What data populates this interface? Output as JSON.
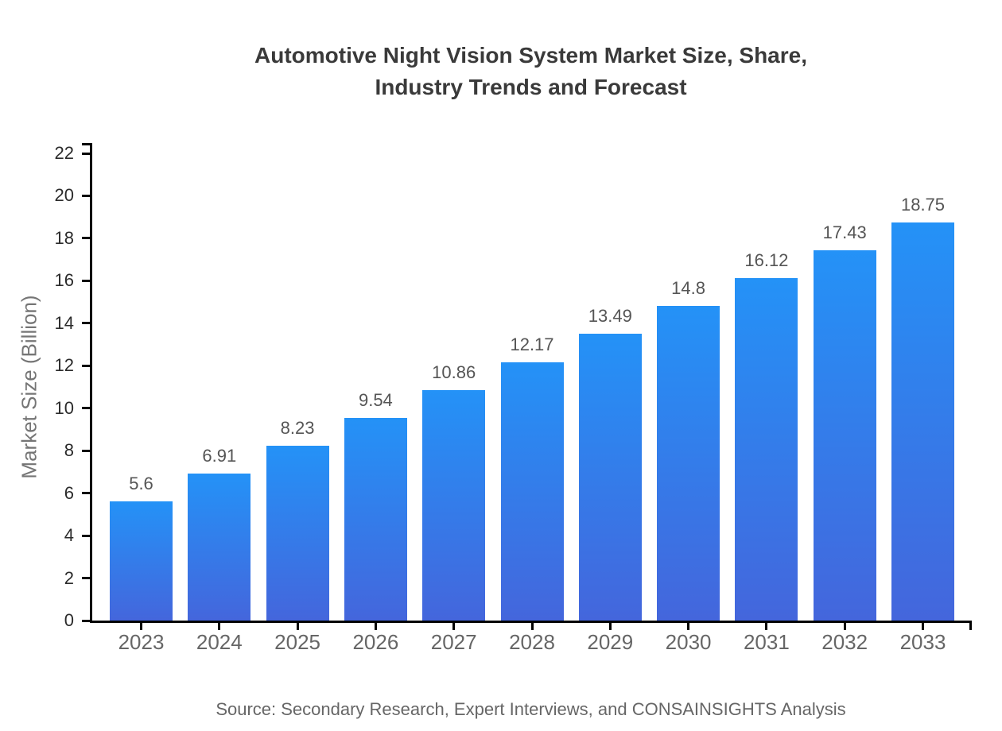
{
  "title": {
    "line1": "Automotive Night Vision System Market Size, Share,",
    "line2": "Industry Trends and Forecast"
  },
  "chart_data": {
    "type": "bar",
    "title": "Automotive Night Vision System Market Size, Share, Industry Trends and Forecast",
    "categories": [
      "2023",
      "2024",
      "2025",
      "2026",
      "2027",
      "2028",
      "2029",
      "2030",
      "2031",
      "2032",
      "2033"
    ],
    "values": [
      5.6,
      6.91,
      8.23,
      9.54,
      10.86,
      12.17,
      13.49,
      14.8,
      16.12,
      17.43,
      18.75
    ],
    "value_labels": [
      "5.6",
      "6.91",
      "8.23",
      "9.54",
      "10.86",
      "12.17",
      "13.49",
      "14.8",
      "16.12",
      "17.43",
      "18.75"
    ],
    "xlabel": "",
    "ylabel": "Market Size (Billion)",
    "ylim": [
      0,
      22.4
    ],
    "yticks": [
      0,
      2,
      4,
      6,
      8,
      10,
      12,
      14,
      16,
      18,
      20,
      22
    ],
    "grid": false,
    "legend": false,
    "bar_color_top": "#2492F7",
    "bar_color_bottom": "#4466DC",
    "axis_color": "#000000"
  },
  "footer": {
    "source": "Source: Secondary Research, Expert Interviews, and CONSAINSIGHTS Analysis"
  },
  "colors": {
    "title": "#3A3A3A",
    "ytick_label": "#2B2B2B",
    "xtick_label": "#666666",
    "value_label": "#555555",
    "ylabel_text": "#757575",
    "source_text": "#666666",
    "background": "#FFFFFF"
  }
}
